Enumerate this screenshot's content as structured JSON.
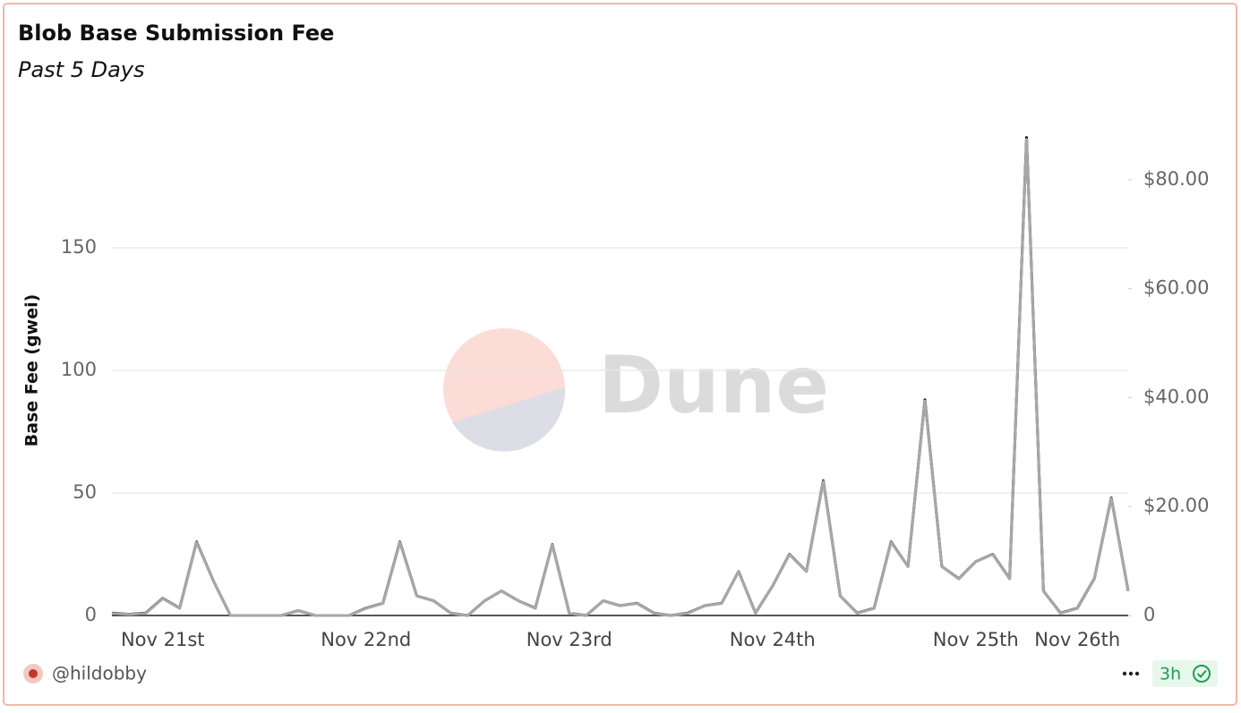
{
  "chart_data": {
    "type": "line",
    "title": "Blob Base Submission Fee",
    "subtitle": "Past 5 Days",
    "y_label": "Base Fee (gwei)",
    "watermark": "Dune",
    "categories": [
      null,
      null,
      null,
      "Nov 21st",
      null,
      null,
      null,
      null,
      null,
      null,
      null,
      null,
      null,
      null,
      null,
      "Nov 22nd",
      null,
      null,
      null,
      null,
      null,
      null,
      null,
      null,
      null,
      null,
      null,
      "Nov 23rd",
      null,
      null,
      null,
      null,
      null,
      null,
      null,
      null,
      null,
      null,
      null,
      "Nov 24th",
      null,
      null,
      null,
      null,
      null,
      null,
      null,
      null,
      null,
      null,
      null,
      "Nov 25th",
      null,
      null,
      null,
      null,
      null,
      "Nov 26th",
      null,
      null,
      null
    ],
    "series": [
      {
        "color": "#000000",
        "values": [
          1,
          0.5,
          1,
          7,
          3,
          30,
          14,
          0,
          0,
          0,
          0,
          2,
          0,
          0,
          0,
          3,
          5,
          30,
          8,
          6,
          1,
          0,
          6,
          10,
          6,
          3,
          29,
          1,
          0,
          6,
          4,
          5,
          1,
          0,
          1,
          4,
          5,
          18,
          1,
          12,
          25,
          18,
          55,
          8,
          1,
          3,
          30,
          20,
          88,
          20,
          15,
          22,
          25,
          15,
          195,
          10,
          1,
          3,
          15,
          48,
          10
        ]
      },
      {
        "color": "#a8a8a8",
        "axis": "y2",
        "values": [
          0.4,
          0.2,
          0.4,
          3.1,
          1.3,
          13.4,
          6.3,
          0,
          0,
          0,
          0,
          0.9,
          0,
          0,
          0,
          1.3,
          2.2,
          13.4,
          3.6,
          2.7,
          0.4,
          0,
          2.7,
          4.5,
          2.7,
          1.3,
          13,
          0.4,
          0,
          2.7,
          1.8,
          2.2,
          0.4,
          0,
          0.4,
          1.8,
          2.2,
          8.1,
          0.4,
          5.4,
          11.2,
          8.1,
          24.6,
          3.6,
          0.4,
          1.3,
          13.4,
          9,
          39.4,
          9,
          6.7,
          9.9,
          11.2,
          6.7,
          87.4,
          4.5,
          0.4,
          1.3,
          6.7,
          21.5,
          4.5
        ]
      }
    ],
    "ylim": [
      0,
      200
    ],
    "yticks": [
      0,
      50,
      100,
      150
    ],
    "y2lim": [
      0,
      90
    ],
    "y2ticks": [
      0,
      {
        "value": 20,
        "label": "$20.00"
      },
      {
        "value": 40,
        "label": "$40.00"
      },
      {
        "value": 60,
        "label": "$60.00"
      },
      {
        "value": 80,
        "label": "$80.00"
      }
    ],
    "grid": true
  },
  "footer": {
    "author": "@hildobby",
    "age": "3h"
  }
}
